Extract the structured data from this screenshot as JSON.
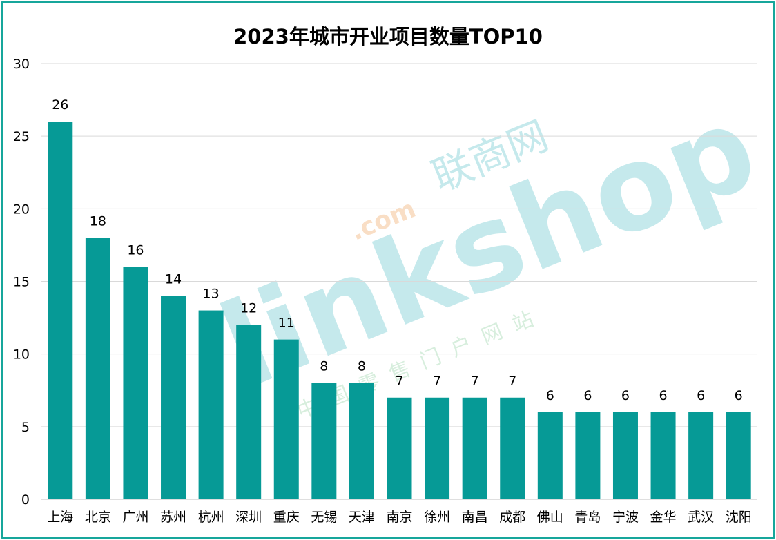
{
  "chart_data": {
    "type": "bar",
    "title": "2023年城市开业项目数量TOP10",
    "xlabel": "",
    "ylabel": "",
    "categories": [
      "上海",
      "北京",
      "广州",
      "苏州",
      "杭州",
      "深圳",
      "重庆",
      "无锡",
      "天津",
      "南京",
      "徐州",
      "南昌",
      "成都",
      "佛山",
      "青岛",
      "宁波",
      "金华",
      "武汉",
      "沈阳"
    ],
    "series": [
      {
        "values": [
          26,
          18,
          16,
          14,
          13,
          12,
          11,
          8,
          8,
          7,
          7,
          7,
          7,
          6,
          6,
          6,
          6,
          6,
          6
        ]
      }
    ],
    "ylim": [
      0,
      30
    ],
    "yticks": [
      0,
      5,
      10,
      15,
      20,
      25,
      30
    ],
    "grid": true,
    "bar_color": "#069a96",
    "data_labels": true
  },
  "watermark": {
    "brand": "linkshop",
    "domain": ".com",
    "site_name": "联商网",
    "slogan": "中国零售门户网站"
  },
  "colors": {
    "frame": "#16a69b",
    "bar": "#069a96",
    "grid": "#d9d9d9"
  }
}
